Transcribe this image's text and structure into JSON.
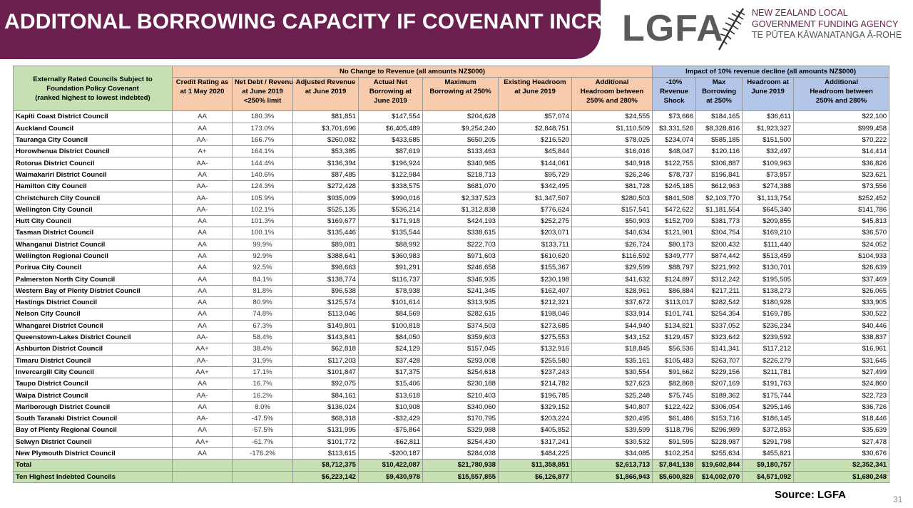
{
  "title": "ADDITONAL BORROWING CAPACITY IF COVENANT INCREASED",
  "logo": {
    "wordmark": "LGFA",
    "line1": "NEW ZEALAND LOCAL",
    "line2": "GOVERNMENT FUNDING AGENCY",
    "line3": "TE PŪTEA KĀWANATANGA Ā-ROHE"
  },
  "table": {
    "group_left": [
      "Externally Rated Councils Subject to",
      "Foundation Policy Covenant",
      "(ranked highest to lowest indebted)"
    ],
    "group_mid": "No Change to Revenue (all amounts NZ$000)",
    "group_right": "Impact of 10% revenue decline (all amounts NZ$000)",
    "headers": [
      [
        "Credit Rating as",
        "at 1 May 2020"
      ],
      [
        "Net Debt / Revenue",
        "at June 2019",
        "<250% limit"
      ],
      [
        "Adjusted Revenue",
        "at June 2019"
      ],
      [
        "Actual Net",
        "Borrowing at",
        "June 2019"
      ],
      [
        "Maximum",
        "Borrowing at 250%"
      ],
      [
        "Existing Headroom",
        "at June 2019"
      ],
      [
        "Additional",
        "Headroom between",
        "250% and 280%"
      ],
      [
        "-10%",
        "Revenue",
        "Shock"
      ],
      [
        "Max",
        "Borrowing",
        "at 250%"
      ],
      [
        "Headroom at",
        "June 2019"
      ],
      [
        "Additional",
        "Headroom between",
        "250% and 280%"
      ]
    ],
    "rows": [
      [
        "Kapiti Coast District Council",
        "AA",
        "180.3%",
        "$81,851",
        "$147,554",
        "$204,628",
        "$57,074",
        "$24,555",
        "$73,666",
        "$184,165",
        "$36,611",
        "$22,100"
      ],
      [
        "Auckland Council",
        "AA",
        "173.0%",
        "$3,701,696",
        "$6,405,489",
        "$9,254,240",
        "$2,848,751",
        "$1,110,509",
        "$3,331,526",
        "$8,328,816",
        "$1,923,327",
        "$999,458"
      ],
      [
        "Tauranga City Council",
        "AA-",
        "166.7%",
        "$260,082",
        "$433,685",
        "$650,205",
        "$216,520",
        "$78,025",
        "$234,074",
        "$585,185",
        "$151,500",
        "$70,222"
      ],
      [
        "Horowhenua District Council",
        "A+",
        "164.1%",
        "$53,385",
        "$87,619",
        "$133,463",
        "$45,844",
        "$16,016",
        "$48,047",
        "$120,116",
        "$32,497",
        "$14,414"
      ],
      [
        "Rotorua District Council",
        "AA-",
        "144.4%",
        "$136,394",
        "$196,924",
        "$340,985",
        "$144,061",
        "$40,918",
        "$122,755",
        "$306,887",
        "$109,963",
        "$36,826"
      ],
      [
        "Waimakariri District Council",
        "AA",
        "140.6%",
        "$87,485",
        "$122,984",
        "$218,713",
        "$95,729",
        "$26,246",
        "$78,737",
        "$196,841",
        "$73,857",
        "$23,621"
      ],
      [
        "Hamilton City Council",
        "AA-",
        "124.3%",
        "$272,428",
        "$338,575",
        "$681,070",
        "$342,495",
        "$81,728",
        "$245,185",
        "$612,963",
        "$274,388",
        "$73,556"
      ],
      [
        "Christchurch City Council",
        "AA-",
        "105.9%",
        "$935,009",
        "$990,016",
        "$2,337,523",
        "$1,347,507",
        "$280,503",
        "$841,508",
        "$2,103,770",
        "$1,113,754",
        "$252,452"
      ],
      [
        "Wellington City Council",
        "AA-",
        "102.1%",
        "$525,135",
        "$536,214",
        "$1,312,838",
        "$776,624",
        "$157,541",
        "$472,622",
        "$1,181,554",
        "$645,340",
        "$141,786"
      ],
      [
        "Hutt City Council",
        "AA",
        "101.3%",
        "$169,677",
        "$171,918",
        "$424,193",
        "$252,275",
        "$50,903",
        "$152,709",
        "$381,773",
        "$209,855",
        "$45,813"
      ],
      [
        "Tasman District Council",
        "AA",
        "100.1%",
        "$135,446",
        "$135,544",
        "$338,615",
        "$203,071",
        "$40,634",
        "$121,901",
        "$304,754",
        "$169,210",
        "$36,570"
      ],
      [
        "Whanganui District Council",
        "AA",
        "99.9%",
        "$89,081",
        "$88,992",
        "$222,703",
        "$133,711",
        "$26,724",
        "$80,173",
        "$200,432",
        "$111,440",
        "$24,052"
      ],
      [
        "Wellington Regional Council",
        "AA",
        "92.9%",
        "$388,641",
        "$360,983",
        "$971,603",
        "$610,620",
        "$116,592",
        "$349,777",
        "$874,442",
        "$513,459",
        "$104,933"
      ],
      [
        "Porirua City Council",
        "AA",
        "92.5%",
        "$98,663",
        "$91,291",
        "$246,658",
        "$155,367",
        "$29,599",
        "$88,797",
        "$221,992",
        "$130,701",
        "$26,639"
      ],
      [
        "Palmerston North City Council",
        "AA",
        "84.1%",
        "$138,774",
        "$116,737",
        "$346,935",
        "$230,198",
        "$41,632",
        "$124,897",
        "$312,242",
        "$195,505",
        "$37,469"
      ],
      [
        "Western Bay of Plenty District Council",
        "AA",
        "81.8%",
        "$96,538",
        "$78,938",
        "$241,345",
        "$162,407",
        "$28,961",
        "$86,884",
        "$217,211",
        "$138,273",
        "$26,065"
      ],
      [
        "Hastings District Council",
        "AA",
        "80.9%",
        "$125,574",
        "$101,614",
        "$313,935",
        "$212,321",
        "$37,672",
        "$113,017",
        "$282,542",
        "$180,928",
        "$33,905"
      ],
      [
        "Nelson City Council",
        "AA",
        "74.8%",
        "$113,046",
        "$84,569",
        "$282,615",
        "$198,046",
        "$33,914",
        "$101,741",
        "$254,354",
        "$169,785",
        "$30,522"
      ],
      [
        "Whangarei District Council",
        "AA",
        "67.3%",
        "$149,801",
        "$100,818",
        "$374,503",
        "$273,685",
        "$44,940",
        "$134,821",
        "$337,052",
        "$236,234",
        "$40,446"
      ],
      [
        "Queenstown-Lakes District Council",
        "AA-",
        "58.4%",
        "$143,841",
        "$84,050",
        "$359,603",
        "$275,553",
        "$43,152",
        "$129,457",
        "$323,642",
        "$239,592",
        "$38,837"
      ],
      [
        "Ashburton District Council",
        "AA+",
        "38.4%",
        "$62,818",
        "$24,129",
        "$157,045",
        "$132,916",
        "$18,845",
        "$56,536",
        "$141,341",
        "$117,212",
        "$16,961"
      ],
      [
        "Timaru District Council",
        "AA-",
        "31.9%",
        "$117,203",
        "$37,428",
        "$293,008",
        "$255,580",
        "$35,161",
        "$105,483",
        "$263,707",
        "$226,279",
        "$31,645"
      ],
      [
        "Invercargill City Council",
        "AA+",
        "17.1%",
        "$101,847",
        "$17,375",
        "$254,618",
        "$237,243",
        "$30,554",
        "$91,662",
        "$229,156",
        "$211,781",
        "$27,499"
      ],
      [
        "Taupo District Council",
        "AA",
        "16.7%",
        "$92,075",
        "$15,406",
        "$230,188",
        "$214,782",
        "$27,623",
        "$82,868",
        "$207,169",
        "$191,763",
        "$24,860"
      ],
      [
        "Waipa District Council",
        "AA-",
        "16.2%",
        "$84,161",
        "$13,618",
        "$210,403",
        "$196,785",
        "$25,248",
        "$75,745",
        "$189,362",
        "$175,744",
        "$22,723"
      ],
      [
        "Marlborough District Council",
        "AA",
        "8.0%",
        "$136,024",
        "$10,908",
        "$340,060",
        "$329,152",
        "$40,807",
        "$122,422",
        "$306,054",
        "$295,146",
        "$36,726"
      ],
      [
        "South Taranaki District Council",
        "AA-",
        "-47.5%",
        "$68,318",
        "-$32,429",
        "$170,795",
        "$203,224",
        "$20,495",
        "$61,486",
        "$153,716",
        "$186,145",
        "$18,446"
      ],
      [
        "Bay of Plenty Regional Council",
        "AA",
        "-57.5%",
        "$131,995",
        "-$75,864",
        "$329,988",
        "$405,852",
        "$39,599",
        "$118,796",
        "$296,989",
        "$372,853",
        "$35,639"
      ],
      [
        "Selwyn District Council",
        "AA+",
        "-61.7%",
        "$101,772",
        "-$62,811",
        "$254,430",
        "$317,241",
        "$30,532",
        "$91,595",
        "$228,987",
        "$291,798",
        "$27,478"
      ],
      [
        "New Plymouth District Council",
        "AA",
        "-176.2%",
        "$113,615",
        "-$200,187",
        "$284,038",
        "$484,225",
        "$34,085",
        "$102,254",
        "$255,634",
        "$455,821",
        "$30,676"
      ]
    ],
    "totals": [
      [
        "Total",
        "",
        "",
        "$8,712,375",
        "$10,422,087",
        "$21,780,938",
        "$11,358,851",
        "$2,613,713",
        "$7,841,138",
        "$19,602,844",
        "$9,180,757",
        "$2,352,341"
      ],
      [
        "Ten Highest Indebted Councils",
        "",
        "",
        "$6,223,142",
        "$9,430,978",
        "$15,557,855",
        "$6,126,877",
        "$1,866,943",
        "$5,600,828",
        "$14,002,070",
        "$4,571,092",
        "$1,680,248"
      ]
    ]
  },
  "source": "Source: LGFA",
  "page_number": "31"
}
